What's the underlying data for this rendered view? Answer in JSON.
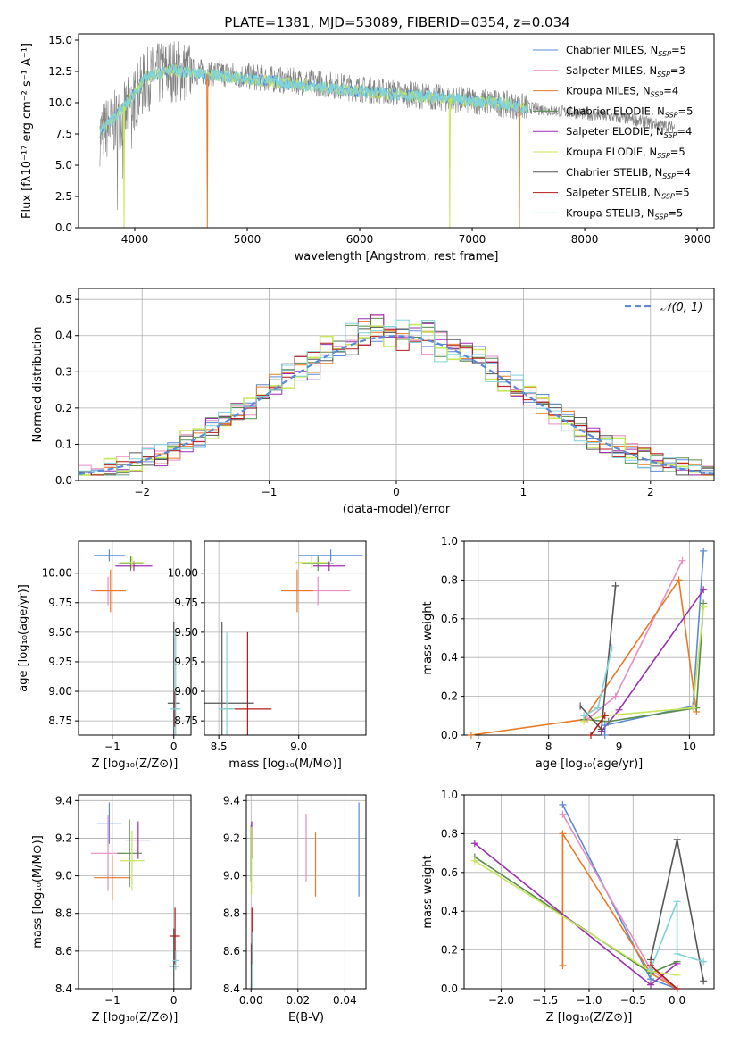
{
  "figure_title": "PLATE=1381, MJD=53089, FIBERID=0354, z=0.034",
  "series_colors": {
    "chabrier_miles": "#5b8ad8",
    "salpeter_miles": "#e58ec0",
    "kroupa_miles": "#e87a27",
    "chabrier_elodie": "#5a8c4f",
    "salpeter_elodie": "#9c2fb0",
    "kroupa_elodie": "#c8e65b",
    "chabrier_stelib": "#555555",
    "salpeter_stelib": "#b41818",
    "kroupa_stelib": "#7fd3da"
  },
  "chart_data": [
    {
      "id": "spectrum",
      "type": "line",
      "xlabel": "wavelength [Angstrom, rest frame]",
      "ylabel": "Flux [fλ10⁻¹⁷ erg cm⁻² s⁻¹ A⁻¹]",
      "xlim": [
        3500,
        9150
      ],
      "ylim": [
        0,
        15.5
      ],
      "xticks": [
        4000,
        5000,
        6000,
        7000,
        8000,
        9000
      ],
      "yticks": [
        0.0,
        2.5,
        5.0,
        7.5,
        10.0,
        12.5,
        15.0
      ],
      "grid": false,
      "legend_position": "upper right",
      "legend": [
        {
          "key": "chabrier_miles",
          "name": "Chabrier MILES",
          "n_ssp": 5
        },
        {
          "key": "salpeter_miles",
          "name": "Salpeter MILES",
          "n_ssp": 3
        },
        {
          "key": "kroupa_miles",
          "name": "Kroupa MILES",
          "n_ssp": 4
        },
        {
          "key": "chabrier_elodie",
          "name": "Chabrier ELODIE",
          "n_ssp": 5
        },
        {
          "key": "salpeter_elodie",
          "name": "Salpeter ELODIE",
          "n_ssp": 4
        },
        {
          "key": "kroupa_elodie",
          "name": "Kroupa ELODIE",
          "n_ssp": 5
        },
        {
          "key": "chabrier_stelib",
          "name": "Chabrier STELIB",
          "n_ssp": 4
        },
        {
          "key": "salpeter_stelib",
          "name": "Salpeter STELIB",
          "n_ssp": 5
        },
        {
          "key": "kroupa_stelib",
          "name": "Kroupa STELIB",
          "n_ssp": 5
        }
      ],
      "data_continuum": {
        "x": [
          3690,
          3900,
          4100,
          4300,
          4500,
          4800,
          5000,
          5300,
          5600,
          6000,
          6400,
          6800,
          7200,
          7500,
          7800,
          8100,
          8400,
          8800
        ],
        "y": [
          7.5,
          9.0,
          11.8,
          12.6,
          12.5,
          12.3,
          12.1,
          11.8,
          11.6,
          11.1,
          10.7,
          10.3,
          10.0,
          9.6,
          9.3,
          9.0,
          8.7,
          8.0
        ]
      },
      "model_continuum": {
        "x": [
          3690,
          3900,
          4100,
          4300,
          4500,
          4800,
          5000,
          5300,
          5600,
          6000,
          6400,
          6800,
          7200,
          7500
        ],
        "y": [
          7.7,
          9.6,
          12.0,
          12.6,
          12.4,
          12.1,
          11.9,
          11.6,
          11.3,
          10.9,
          10.6,
          10.3,
          10.0,
          9.6
        ]
      },
      "gap_dips": [
        {
          "x": 4645,
          "key": "kroupa_miles"
        },
        {
          "x": 6800,
          "key": "kroupa_elodie"
        },
        {
          "x": 7420,
          "key": "kroupa_miles"
        },
        {
          "x": 3905,
          "key": "kroupa_elodie"
        }
      ]
    },
    {
      "id": "residuals",
      "type": "line",
      "xlabel": "(data-model)/error",
      "ylabel": "Normed distribution",
      "xlim": [
        -2.5,
        2.5
      ],
      "ylim": [
        0,
        0.53
      ],
      "xticks": [
        -2,
        -1,
        0,
        1,
        2
      ],
      "yticks": [
        0.0,
        0.1,
        0.2,
        0.3,
        0.4,
        0.5
      ],
      "grid": true,
      "legend_position": "upper right",
      "legend": [
        {
          "name": "𝒩(0, 1)",
          "style": "dashed"
        }
      ],
      "bin_width": 0.1,
      "histogram_top": 0.5,
      "histogram_bottom": 0.015
    },
    {
      "id": "age_vs_Z",
      "type": "scatter",
      "xlabel": "Z [log₁₀(Z/Z⊙)]",
      "ylabel": "age  [log₁₀(age/yr)]",
      "xlim": [
        -1.55,
        0.28
      ],
      "ylim": [
        8.63,
        10.27
      ],
      "xticks": [
        -1,
        0
      ],
      "yticks": [
        8.75,
        9.0,
        9.25,
        9.5,
        9.75,
        10.0
      ],
      "grid": true,
      "points": [
        {
          "key": "chabrier_miles",
          "x": -1.05,
          "y": 10.15,
          "xerr": 0.25,
          "yerr": 0.05
        },
        {
          "key": "salpeter_miles",
          "x": -1.07,
          "y": 9.85,
          "xerr": 0.28,
          "yerr": 0.12
        },
        {
          "key": "kroupa_miles",
          "x": -1.03,
          "y": 9.85,
          "xerr": 0.25,
          "yerr": 0.18
        },
        {
          "key": "chabrier_elodie",
          "x": -0.7,
          "y": 10.08,
          "xerr": 0.2,
          "yerr": 0.06
        },
        {
          "key": "salpeter_elodie",
          "x": -0.65,
          "y": 10.06,
          "xerr": 0.3,
          "yerr": 0.04
        },
        {
          "key": "kroupa_elodie",
          "x": -0.68,
          "y": 10.09,
          "xerr": 0.2,
          "yerr": 0.05
        },
        {
          "key": "chabrier_stelib",
          "x": 0.0,
          "y": 8.9,
          "xerr": 0.1,
          "yerr": 0.69
        },
        {
          "key": "salpeter_stelib",
          "x": 0.02,
          "y": 8.85,
          "xerr": 0.05,
          "yerr": 0.15
        },
        {
          "key": "kroupa_stelib",
          "x": 0.03,
          "y": 8.85,
          "xerr": 0.08,
          "yerr": 0.65
        }
      ]
    },
    {
      "id": "age_vs_mass",
      "type": "scatter",
      "xlabel": "mass [log₁₀(M/M⊙)]",
      "ylabel": "",
      "xlim": [
        8.41,
        9.42
      ],
      "ylim": [
        8.63,
        10.27
      ],
      "xticks": [
        8.5,
        9.0
      ],
      "yticks": [
        8.75,
        9.0,
        9.25,
        9.5,
        9.75,
        10.0
      ],
      "grid": true,
      "points": [
        {
          "key": "chabrier_miles",
          "x": 9.2,
          "y": 10.15,
          "xerr": 0.2,
          "yerr": 0.05
        },
        {
          "key": "salpeter_miles",
          "x": 9.12,
          "y": 9.85,
          "xerr": 0.2,
          "yerr": 0.12
        },
        {
          "key": "kroupa_miles",
          "x": 8.99,
          "y": 9.85,
          "xerr": 0.1,
          "yerr": 0.18
        },
        {
          "key": "chabrier_elodie",
          "x": 9.12,
          "y": 10.08,
          "xerr": 0.1,
          "yerr": 0.06
        },
        {
          "key": "salpeter_elodie",
          "x": 9.19,
          "y": 10.06,
          "xerr": 0.1,
          "yerr": 0.04
        },
        {
          "key": "kroupa_elodie",
          "x": 9.08,
          "y": 10.09,
          "xerr": 0.1,
          "yerr": 0.05
        },
        {
          "key": "chabrier_stelib",
          "x": 8.52,
          "y": 8.9,
          "xerr": 0.2,
          "yerr": 0.69
        },
        {
          "key": "salpeter_stelib",
          "x": 8.68,
          "y": 8.85,
          "xerr": 0.15,
          "yerr": 0.65
        },
        {
          "key": "kroupa_stelib",
          "x": 8.55,
          "y": 8.85,
          "xerr": 0.05,
          "yerr": 0.65
        }
      ]
    },
    {
      "id": "mass_weight_vs_age",
      "type": "line",
      "xlabel": "age  [log₁₀(age/yr)]",
      "ylabel": "mass weight",
      "xlim": [
        6.8,
        10.35
      ],
      "ylim": [
        0,
        1.0
      ],
      "xticks": [
        7,
        8,
        9,
        10
      ],
      "yticks": [
        0.0,
        0.2,
        0.4,
        0.6,
        0.8,
        1.0
      ],
      "grid": true,
      "series": [
        {
          "key": "chabrier_miles",
          "points": [
            [
              8.8,
              0.0
            ],
            [
              8.8,
              0.05
            ],
            [
              10.05,
              0.15
            ],
            [
              10.2,
              0.95
            ]
          ]
        },
        {
          "key": "salpeter_miles",
          "points": [
            [
              8.55,
              0.08
            ],
            [
              8.95,
              0.2
            ],
            [
              9.9,
              0.9
            ]
          ]
        },
        {
          "key": "kroupa_miles",
          "points": [
            [
              6.9,
              0.0
            ],
            [
              8.5,
              0.08
            ],
            [
              9.85,
              0.8
            ],
            [
              10.1,
              0.12
            ]
          ]
        },
        {
          "key": "chabrier_elodie",
          "points": [
            [
              8.5,
              0.08
            ],
            [
              8.85,
              0.07
            ],
            [
              10.1,
              0.14
            ],
            [
              10.2,
              0.68
            ]
          ]
        },
        {
          "key": "salpeter_elodie",
          "points": [
            [
              8.75,
              0.02
            ],
            [
              9.0,
              0.13
            ],
            [
              10.2,
              0.75
            ]
          ]
        },
        {
          "key": "kroupa_elodie",
          "points": [
            [
              8.5,
              0.07
            ],
            [
              8.8,
              0.1
            ],
            [
              10.05,
              0.14
            ],
            [
              10.2,
              0.66
            ]
          ]
        },
        {
          "key": "chabrier_stelib",
          "points": [
            [
              8.45,
              0.15
            ],
            [
              8.75,
              0.03
            ],
            [
              8.95,
              0.77
            ]
          ]
        },
        {
          "key": "salpeter_stelib",
          "points": [
            [
              8.6,
              0.0
            ],
            [
              8.8,
              0.1
            ]
          ]
        },
        {
          "key": "kroupa_stelib",
          "points": [
            [
              8.5,
              0.1
            ],
            [
              8.7,
              0.14
            ],
            [
              8.9,
              0.45
            ]
          ]
        }
      ]
    },
    {
      "id": "mass_vs_Z",
      "type": "scatter",
      "xlabel": "Z [log₁₀(Z/Z⊙)]",
      "ylabel": "mass [log₁₀(M/M⊙)]",
      "xlim": [
        -1.55,
        0.28
      ],
      "ylim": [
        8.4,
        9.43
      ],
      "xticks": [
        -1,
        0
      ],
      "yticks": [
        8.4,
        8.6,
        8.8,
        9.0,
        9.2,
        9.4
      ],
      "grid": true,
      "points": [
        {
          "key": "chabrier_miles",
          "x": -1.05,
          "y": 9.28,
          "xerr": 0.2,
          "yerr": 0.11
        },
        {
          "key": "salpeter_miles",
          "x": -1.07,
          "y": 9.12,
          "xerr": 0.28,
          "yerr": 0.2
        },
        {
          "key": "kroupa_miles",
          "x": -1.0,
          "y": 8.99,
          "xerr": 0.3,
          "yerr": 0.12
        },
        {
          "key": "chabrier_elodie",
          "x": -0.72,
          "y": 9.12,
          "xerr": 0.2,
          "yerr": 0.18
        },
        {
          "key": "salpeter_elodie",
          "x": -0.58,
          "y": 9.19,
          "xerr": 0.2,
          "yerr": 0.1
        },
        {
          "key": "kroupa_elodie",
          "x": -0.68,
          "y": 9.08,
          "xerr": 0.2,
          "yerr": 0.16
        },
        {
          "key": "chabrier_stelib",
          "x": 0.0,
          "y": 8.52,
          "xerr": 0.08,
          "yerr": 0.2
        },
        {
          "key": "salpeter_stelib",
          "x": 0.02,
          "y": 8.68,
          "xerr": 0.08,
          "yerr": 0.15
        },
        {
          "key": "kroupa_stelib",
          "x": 0.03,
          "y": 8.55,
          "xerr": 0.05,
          "yerr": 0.05
        }
      ]
    },
    {
      "id": "mass_vs_ebv",
      "type": "scatter",
      "xlabel": "E(B-V)",
      "ylabel": "",
      "xlim": [
        -0.002,
        0.049
      ],
      "ylim": [
        8.4,
        9.43
      ],
      "xticks": [
        0.0,
        0.02,
        0.04
      ],
      "yticks": [
        8.4,
        8.6,
        8.8,
        9.0,
        9.2,
        9.4
      ],
      "grid": true,
      "points": [
        {
          "key": "chabrier_miles",
          "x": 0.046,
          "y": 9.14,
          "xerr": 0.0,
          "yerr": 0.25
        },
        {
          "key": "salpeter_miles",
          "x": 0.0235,
          "y": 9.15,
          "xerr": 0.0,
          "yerr": 0.18
        },
        {
          "key": "kroupa_miles",
          "x": 0.0275,
          "y": 9.06,
          "xerr": 0.0,
          "yerr": 0.17
        },
        {
          "key": "chabrier_elodie",
          "x": 0.0,
          "y": 9.12,
          "xerr": 0.0,
          "yerr": 0.15
        },
        {
          "key": "salpeter_elodie",
          "x": 0.0003,
          "y": 9.19,
          "xerr": 0.0,
          "yerr": 0.1
        },
        {
          "key": "kroupa_elodie",
          "x": 0.0002,
          "y": 9.08,
          "xerr": 0.0,
          "yerr": 0.18
        },
        {
          "key": "chabrier_stelib",
          "x": 0.0001,
          "y": 8.52,
          "xerr": 0.0,
          "yerr": 0.12
        },
        {
          "key": "salpeter_stelib",
          "x": 0.0004,
          "y": 8.68,
          "xerr": 0.0,
          "yerr": 0.15
        },
        {
          "key": "kroupa_stelib",
          "x": 0.0006,
          "y": 8.55,
          "xerr": 0.0,
          "yerr": 0.15
        }
      ]
    },
    {
      "id": "mass_weight_vs_Z",
      "type": "line",
      "xlabel": "Z [log₁₀(Z/Z⊙)]",
      "ylabel": "mass weight",
      "xlim": [
        -2.42,
        0.42
      ],
      "ylim": [
        0,
        1.0
      ],
      "xticks": [
        -2.0,
        -1.5,
        -1.0,
        -0.5,
        0.0
      ],
      "yticks": [
        0.0,
        0.2,
        0.4,
        0.6,
        0.8,
        1.0
      ],
      "grid": true,
      "series": [
        {
          "key": "chabrier_miles",
          "points": [
            [
              -1.3,
              0.95
            ],
            [
              -0.3,
              0.05
            ],
            [
              0.0,
              0.0
            ]
          ]
        },
        {
          "key": "salpeter_miles",
          "points": [
            [
              -1.3,
              0.9
            ],
            [
              -0.3,
              0.1
            ],
            [
              0.0,
              0.0
            ]
          ]
        },
        {
          "key": "kroupa_miles",
          "points": [
            [
              -1.3,
              0.12
            ],
            [
              -1.3,
              0.8
            ],
            [
              -0.3,
              0.08
            ],
            [
              0.0,
              0.0
            ]
          ]
        },
        {
          "key": "chabrier_elodie",
          "points": [
            [
              -2.3,
              0.68
            ],
            [
              -0.3,
              0.08
            ],
            [
              0.0,
              0.14
            ]
          ]
        },
        {
          "key": "salpeter_elodie",
          "points": [
            [
              -2.3,
              0.75
            ],
            [
              -0.3,
              0.02
            ],
            [
              0.0,
              0.13
            ]
          ]
        },
        {
          "key": "kroupa_elodie",
          "points": [
            [
              -2.3,
              0.66
            ],
            [
              -0.3,
              0.09
            ],
            [
              0.0,
              0.07
            ]
          ]
        },
        {
          "key": "chabrier_stelib",
          "points": [
            [
              -0.3,
              0.15
            ],
            [
              0.0,
              0.77
            ],
            [
              0.3,
              0.04
            ]
          ]
        },
        {
          "key": "salpeter_stelib",
          "points": [
            [
              -0.3,
              0.12
            ],
            [
              0.0,
              0.0
            ]
          ]
        },
        {
          "key": "kroupa_stelib",
          "points": [
            [
              -0.3,
              0.1
            ],
            [
              0.0,
              0.45
            ],
            [
              0.0,
              0.18
            ],
            [
              0.3,
              0.14
            ]
          ]
        }
      ]
    }
  ]
}
